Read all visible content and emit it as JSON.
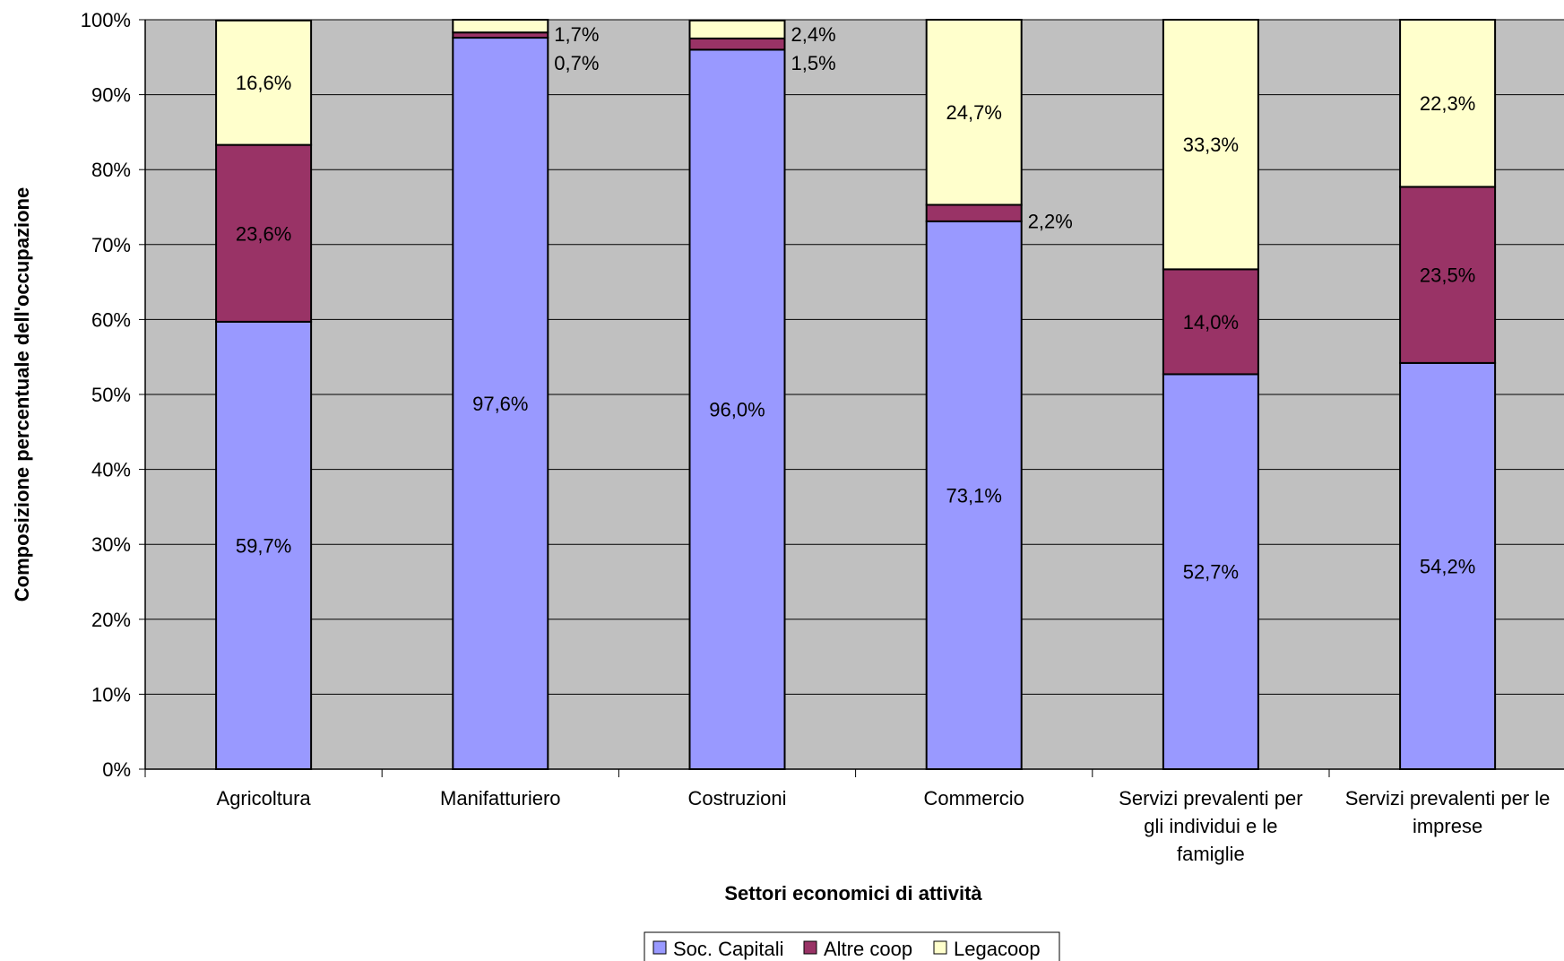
{
  "chart_data": {
    "type": "bar",
    "stacked": true,
    "percent_stacked": true,
    "title": "",
    "xlabel": "Settori economici di attività",
    "ylabel": "Composizione percentuale dell'occupazione",
    "ylim": [
      0,
      100
    ],
    "yticks": [
      "0%",
      "10%",
      "20%",
      "30%",
      "40%",
      "50%",
      "60%",
      "70%",
      "80%",
      "90%",
      "100%"
    ],
    "grid": true,
    "legend_position": "bottom",
    "categories": [
      "Agricoltura",
      "Manifatturiero",
      "Costruzioni",
      "Commercio",
      "Servizi prevalenti per gli individui e le famiglie",
      "Servizi prevalenti per le imprese"
    ],
    "category_lines": [
      [
        "Agricoltura"
      ],
      [
        "Manifatturiero"
      ],
      [
        "Costruzioni"
      ],
      [
        "Commercio"
      ],
      [
        "Servizi prevalenti per",
        "gli individui e le",
        "famiglie"
      ],
      [
        "Servizi prevalenti per le",
        "imprese"
      ]
    ],
    "series": [
      {
        "name": "Soc. Capitali",
        "color": "#9999ff",
        "values": [
          59.7,
          97.6,
          96.0,
          73.1,
          52.7,
          54.2
        ],
        "labels": [
          "59,7%",
          "97,6%",
          "96,0%",
          "73,1%",
          "52,7%",
          "54,2%"
        ]
      },
      {
        "name": "Altre coop",
        "color": "#993366",
        "values": [
          23.6,
          0.7,
          1.5,
          2.2,
          14.0,
          23.5
        ],
        "labels": [
          "23,6%",
          "0,7%",
          "1,5%",
          "2,2%",
          "14,0%",
          "23,5%"
        ]
      },
      {
        "name": "Legacoop",
        "color": "#ffffcc",
        "values": [
          16.6,
          1.7,
          2.4,
          24.7,
          33.3,
          22.3
        ],
        "labels": [
          "16,6%",
          "1,7%",
          "2,4%",
          "24,7%",
          "33,3%",
          "22,3%"
        ]
      }
    ],
    "colors": {
      "plot_background": "#c0c0c0",
      "gridline": "#000000",
      "bar_border": "#000000"
    }
  }
}
